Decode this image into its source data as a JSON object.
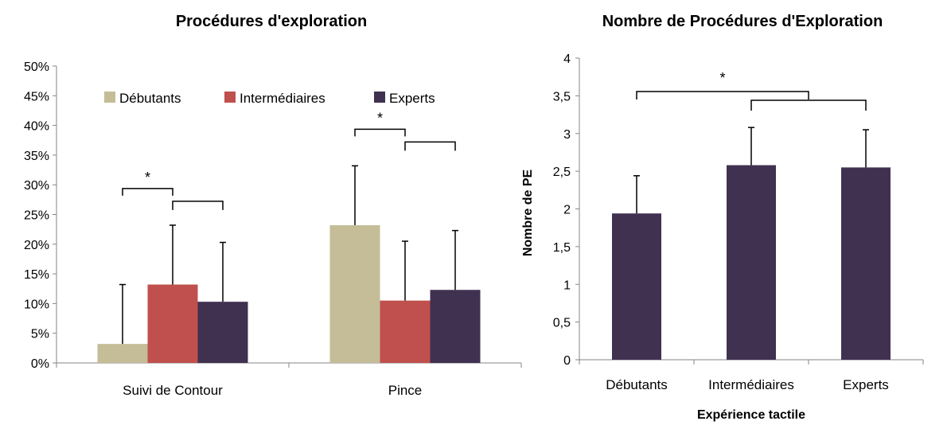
{
  "chart_data": [
    {
      "type": "bar",
      "title": "Procédures d'exploration",
      "xlabel": "",
      "ylabel": "",
      "categories": [
        "Suivi de Contour",
        "Pince"
      ],
      "ylim": [
        0,
        50
      ],
      "yticks": [
        "0%",
        "5%",
        "10%",
        "15%",
        "20%",
        "25%",
        "30%",
        "35%",
        "40%",
        "45%",
        "50%"
      ],
      "legend_position": "top-right",
      "series": [
        {
          "name": "Débutants",
          "color": "#c4bd97",
          "values": [
            3.2,
            23.2
          ],
          "errors": [
            10.0,
            10.0
          ]
        },
        {
          "name": "Intermédiaires",
          "color": "#c0504d",
          "values": [
            13.2,
            10.5
          ],
          "errors": [
            10.0,
            10.0
          ]
        },
        {
          "name": "Experts",
          "color": "#403151",
          "values": [
            10.3,
            12.3
          ],
          "errors": [
            10.0,
            10.0
          ]
        }
      ],
      "significance": [
        {
          "category": "Suivi de Contour",
          "label": "*"
        },
        {
          "category": "Pince",
          "label": "*"
        }
      ]
    },
    {
      "type": "bar",
      "title": "Nombre de Procédures d'Exploration",
      "xlabel": "Expérience tactile",
      "ylabel": "Nombre de PE",
      "categories": [
        "Débutants",
        "Intermédiaires",
        "Experts"
      ],
      "ylim": [
        0,
        4
      ],
      "yticks": [
        "0",
        "0,5",
        "1",
        "1,5",
        "2",
        "2,5",
        "3",
        "3,5",
        "4"
      ],
      "color": "#403151",
      "values": [
        1.94,
        2.58,
        2.55
      ],
      "errors": [
        0.5,
        0.5,
        0.5
      ],
      "significance": [
        {
          "label": "*"
        }
      ]
    }
  ]
}
